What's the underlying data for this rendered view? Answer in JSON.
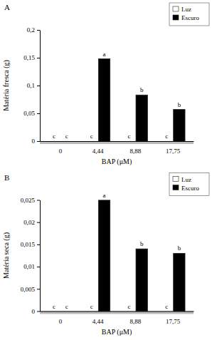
{
  "chart_data": [
    {
      "type": "bar",
      "title": "A",
      "x_label": "BAP (μM)",
      "y_label": "Matéria fresca (g)",
      "categories": [
        "0",
        "4,44",
        "8,88",
        "17,75"
      ],
      "series": [
        {
          "name": "Luz",
          "color": "#ffffff",
          "values": [
            0,
            0,
            0,
            0
          ],
          "letters": [
            "c",
            "c",
            "c",
            "c"
          ]
        },
        {
          "name": "Escuro",
          "color": "#000000",
          "values": [
            0,
            0.148,
            0.083,
            0.057
          ],
          "letters": [
            "c",
            "a",
            "b",
            "b"
          ]
        }
      ],
      "ylim": [
        0,
        0.2
      ],
      "yticks": [
        0,
        {
          "value": 0.05,
          "label": "0,05"
        },
        {
          "value": 0.1,
          "label": "0,1"
        },
        {
          "value": 0.15,
          "label": "0,15"
        },
        {
          "value": 0.2,
          "label": "0,2"
        }
      ],
      "grid": false,
      "legend": "top-right"
    },
    {
      "type": "bar",
      "title": "B",
      "x_label": "BAP (μM)",
      "y_label": "Matéria seca (g)",
      "categories": [
        "0",
        "4,44",
        "8,88",
        "17,75"
      ],
      "series": [
        {
          "name": "Luz",
          "color": "#ffffff",
          "values": [
            0,
            0,
            0,
            0
          ],
          "letters": [
            "c",
            "c",
            "c",
            "c"
          ]
        },
        {
          "name": "Escuro",
          "color": "#000000",
          "values": [
            0,
            0.025,
            0.014,
            0.013
          ],
          "letters": [
            "c",
            "a",
            "b",
            "b"
          ]
        }
      ],
      "ylim": [
        0,
        0.025
      ],
      "yticks": [
        0,
        {
          "value": 0.005,
          "label": "0,005"
        },
        {
          "value": 0.01,
          "label": "0,01"
        },
        {
          "value": 0.015,
          "label": "0,015"
        },
        {
          "value": 0.02,
          "label": "0,02"
        },
        {
          "value": 0.025,
          "label": "0,025"
        }
      ],
      "grid": false,
      "legend": "top-right"
    }
  ]
}
